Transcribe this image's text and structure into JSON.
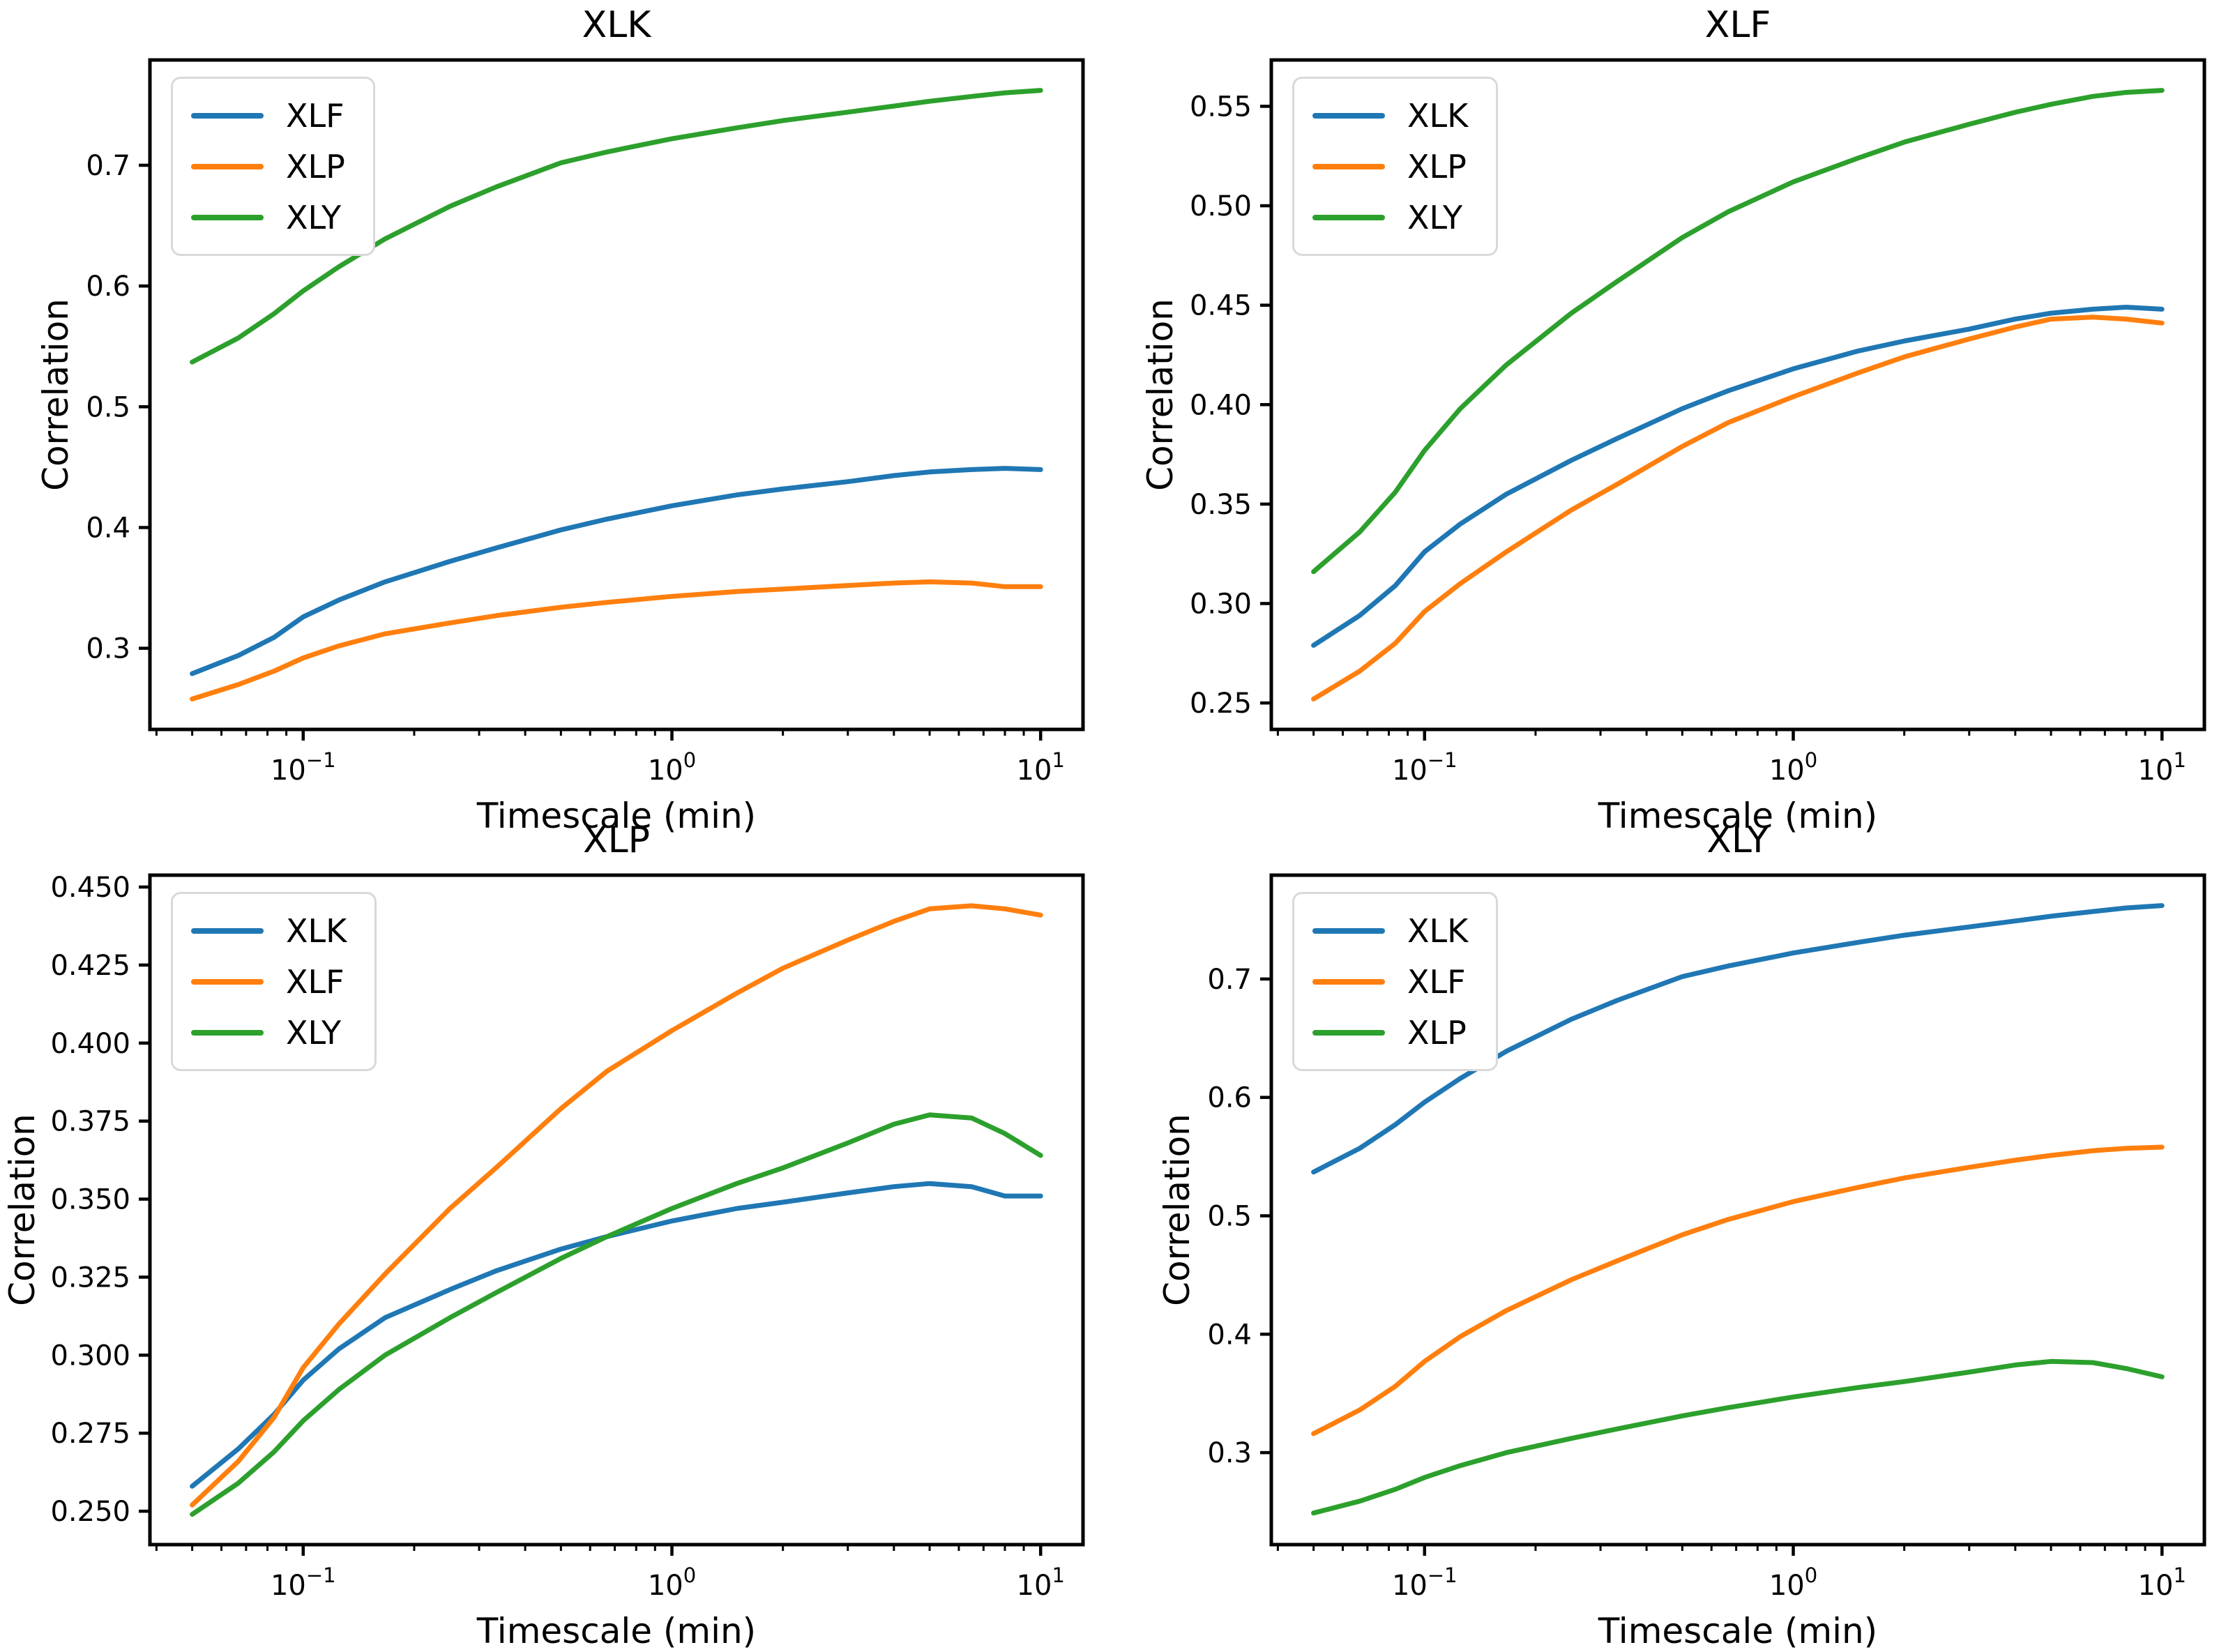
{
  "figure": {
    "background": "#ffffff",
    "spine_color": "#000000",
    "legend_border_color": "#d9d9d9",
    "series_colors": {
      "blue": "#1f77b4",
      "orange": "#ff7f0e",
      "green": "#2ca02c"
    }
  },
  "chart_data": [
    {
      "type": "line",
      "title": "XLK",
      "xlabel": "Timescale (min)",
      "ylabel": "Correlation",
      "x_scale": "log",
      "grid": false,
      "legend_position": "upper left",
      "xlim": [
        0.0384,
        13.03
      ],
      "ylim": [
        0.2328,
        0.7872
      ],
      "x_ticks": [
        0.1,
        1,
        10
      ],
      "x_tick_labels": [
        "10^-1",
        "10^0",
        "10^1"
      ],
      "y_ticks": [
        0.3,
        0.4,
        0.5,
        0.6,
        0.7
      ],
      "y_tick_decimals": 1,
      "x": [
        0.05,
        0.0667,
        0.0833,
        0.1,
        0.125,
        0.1667,
        0.25,
        0.3333,
        0.5,
        0.6667,
        1.0,
        1.5,
        2.0,
        3.0,
        4.0,
        5.0,
        6.5,
        8.0,
        10.0
      ],
      "series": [
        {
          "name": "XLF",
          "color": "#1f77b4",
          "values": [
            0.279,
            0.294,
            0.309,
            0.326,
            0.34,
            0.355,
            0.372,
            0.383,
            0.398,
            0.407,
            0.418,
            0.427,
            0.432,
            0.438,
            0.443,
            0.446,
            0.448,
            0.449,
            0.448
          ]
        },
        {
          "name": "XLP",
          "color": "#ff7f0e",
          "values": [
            0.258,
            0.27,
            0.281,
            0.292,
            0.302,
            0.312,
            0.321,
            0.327,
            0.334,
            0.338,
            0.343,
            0.347,
            0.349,
            0.352,
            0.354,
            0.355,
            0.354,
            0.351,
            0.351
          ]
        },
        {
          "name": "XLY",
          "color": "#2ca02c",
          "values": [
            0.537,
            0.557,
            0.577,
            0.596,
            0.616,
            0.639,
            0.666,
            0.682,
            0.702,
            0.711,
            0.722,
            0.731,
            0.737,
            0.744,
            0.749,
            0.753,
            0.757,
            0.76,
            0.762
          ]
        }
      ]
    },
    {
      "type": "line",
      "title": "XLF",
      "xlabel": "Timescale (min)",
      "ylabel": "Correlation",
      "x_scale": "log",
      "grid": false,
      "legend_position": "upper left",
      "xlim": [
        0.0384,
        13.03
      ],
      "ylim": [
        0.2367,
        0.5733
      ],
      "x_ticks": [
        0.1,
        1,
        10
      ],
      "x_tick_labels": [
        "10^-1",
        "10^0",
        "10^1"
      ],
      "y_ticks": [
        0.25,
        0.3,
        0.35,
        0.4,
        0.45,
        0.5,
        0.55
      ],
      "y_tick_decimals": 2,
      "x": [
        0.05,
        0.0667,
        0.0833,
        0.1,
        0.125,
        0.1667,
        0.25,
        0.3333,
        0.5,
        0.6667,
        1.0,
        1.5,
        2.0,
        3.0,
        4.0,
        5.0,
        6.5,
        8.0,
        10.0
      ],
      "series": [
        {
          "name": "XLK",
          "color": "#1f77b4",
          "values": [
            0.279,
            0.294,
            0.309,
            0.326,
            0.34,
            0.355,
            0.372,
            0.383,
            0.398,
            0.407,
            0.418,
            0.427,
            0.432,
            0.438,
            0.443,
            0.446,
            0.448,
            0.449,
            0.448
          ]
        },
        {
          "name": "XLP",
          "color": "#ff7f0e",
          "values": [
            0.252,
            0.266,
            0.28,
            0.296,
            0.31,
            0.326,
            0.347,
            0.36,
            0.379,
            0.391,
            0.404,
            0.416,
            0.424,
            0.433,
            0.439,
            0.443,
            0.444,
            0.443,
            0.441
          ]
        },
        {
          "name": "XLY",
          "color": "#2ca02c",
          "values": [
            0.316,
            0.336,
            0.356,
            0.377,
            0.398,
            0.42,
            0.446,
            0.462,
            0.484,
            0.497,
            0.512,
            0.524,
            0.532,
            0.541,
            0.547,
            0.551,
            0.555,
            0.557,
            0.558
          ]
        }
      ]
    },
    {
      "type": "line",
      "title": "XLP",
      "xlabel": "Timescale (min)",
      "ylabel": "Correlation",
      "x_scale": "log",
      "grid": false,
      "legend_position": "upper left",
      "xlim": [
        0.0384,
        13.03
      ],
      "ylim": [
        0.2393,
        0.4538
      ],
      "x_ticks": [
        0.1,
        1,
        10
      ],
      "x_tick_labels": [
        "10^-1",
        "10^0",
        "10^1"
      ],
      "y_ticks": [
        0.25,
        0.275,
        0.3,
        0.325,
        0.35,
        0.375,
        0.4,
        0.425,
        0.45
      ],
      "y_tick_decimals": 3,
      "x": [
        0.05,
        0.0667,
        0.0833,
        0.1,
        0.125,
        0.1667,
        0.25,
        0.3333,
        0.5,
        0.6667,
        1.0,
        1.5,
        2.0,
        3.0,
        4.0,
        5.0,
        6.5,
        8.0,
        10.0
      ],
      "series": [
        {
          "name": "XLK",
          "color": "#1f77b4",
          "values": [
            0.258,
            0.27,
            0.281,
            0.292,
            0.302,
            0.312,
            0.321,
            0.327,
            0.334,
            0.338,
            0.343,
            0.347,
            0.349,
            0.352,
            0.354,
            0.355,
            0.354,
            0.351,
            0.351
          ]
        },
        {
          "name": "XLF",
          "color": "#ff7f0e",
          "values": [
            0.252,
            0.266,
            0.28,
            0.296,
            0.31,
            0.326,
            0.347,
            0.36,
            0.379,
            0.391,
            0.404,
            0.416,
            0.424,
            0.433,
            0.439,
            0.443,
            0.444,
            0.443,
            0.441
          ]
        },
        {
          "name": "XLY",
          "color": "#2ca02c",
          "values": [
            0.249,
            0.259,
            0.269,
            0.279,
            0.289,
            0.3,
            0.312,
            0.32,
            0.331,
            0.338,
            0.347,
            0.355,
            0.36,
            0.368,
            0.374,
            0.377,
            0.376,
            0.371,
            0.364
          ]
        }
      ]
    },
    {
      "type": "line",
      "title": "XLY",
      "xlabel": "Timescale (min)",
      "ylabel": "Correlation",
      "x_scale": "log",
      "grid": false,
      "legend_position": "upper left",
      "xlim": [
        0.0384,
        13.03
      ],
      "ylim": [
        0.2223,
        0.7877
      ],
      "x_ticks": [
        0.1,
        1,
        10
      ],
      "x_tick_labels": [
        "10^-1",
        "10^0",
        "10^1"
      ],
      "y_ticks": [
        0.3,
        0.4,
        0.5,
        0.6,
        0.7
      ],
      "y_tick_decimals": 1,
      "x": [
        0.05,
        0.0667,
        0.0833,
        0.1,
        0.125,
        0.1667,
        0.25,
        0.3333,
        0.5,
        0.6667,
        1.0,
        1.5,
        2.0,
        3.0,
        4.0,
        5.0,
        6.5,
        8.0,
        10.0
      ],
      "series": [
        {
          "name": "XLK",
          "color": "#1f77b4",
          "values": [
            0.537,
            0.557,
            0.577,
            0.596,
            0.616,
            0.639,
            0.666,
            0.682,
            0.702,
            0.711,
            0.722,
            0.731,
            0.737,
            0.744,
            0.749,
            0.753,
            0.757,
            0.76,
            0.762
          ]
        },
        {
          "name": "XLF",
          "color": "#ff7f0e",
          "values": [
            0.316,
            0.336,
            0.356,
            0.377,
            0.398,
            0.42,
            0.446,
            0.462,
            0.484,
            0.497,
            0.512,
            0.524,
            0.532,
            0.541,
            0.547,
            0.551,
            0.555,
            0.557,
            0.558
          ]
        },
        {
          "name": "XLP",
          "color": "#2ca02c",
          "values": [
            0.249,
            0.259,
            0.269,
            0.279,
            0.289,
            0.3,
            0.312,
            0.32,
            0.331,
            0.338,
            0.347,
            0.355,
            0.36,
            0.368,
            0.374,
            0.377,
            0.376,
            0.371,
            0.364
          ]
        }
      ]
    }
  ]
}
